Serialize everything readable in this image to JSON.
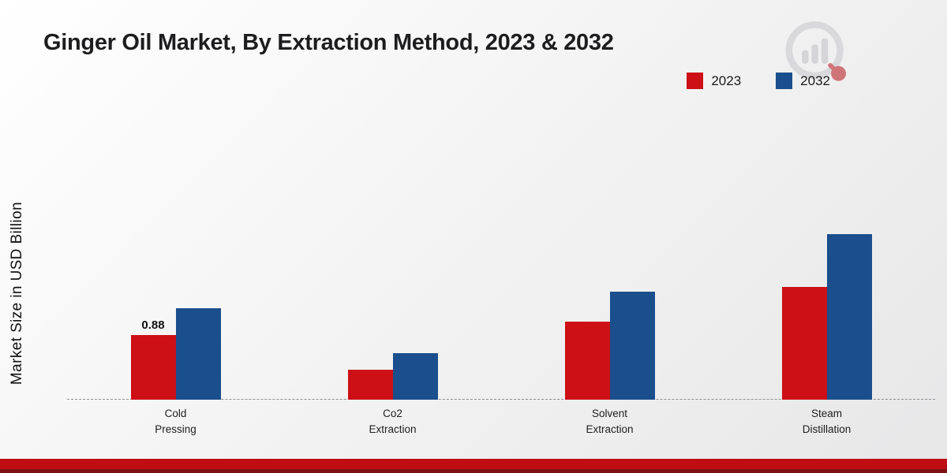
{
  "page": {
    "title": "Ginger Oil Market, By Extraction Method, 2023 & 2032",
    "ylabel": "Market Size in USD Billion"
  },
  "legend": {
    "items": [
      {
        "label": "2023",
        "color": "#cc1016"
      },
      {
        "label": "2032",
        "color": "#1a4e8c"
      }
    ]
  },
  "chart_data": {
    "type": "bar",
    "title": "Ginger Oil Market, By Extraction Method, 2023 & 2032",
    "xlabel": "",
    "ylabel": "Market Size in USD Billion",
    "categories": [
      "Cold Pressing",
      "Co2 Extraction",
      "Solvent Extraction",
      "Steam Distillation"
    ],
    "series": [
      {
        "name": "2023",
        "color": "#cc1016",
        "values": [
          0.88,
          0.41,
          1.06,
          1.54
        ]
      },
      {
        "name": "2032",
        "color": "#1a4e8c",
        "values": [
          1.25,
          0.63,
          1.47,
          2.26
        ]
      }
    ],
    "data_labels": [
      {
        "series": "2023",
        "category": "Cold Pressing",
        "text": "0.88"
      }
    ],
    "ylim": [
      0,
      2.5
    ],
    "grid": false,
    "legend_position": "top-right",
    "baseline_style": "dashed"
  },
  "colors": {
    "series_2023": "#cc1016",
    "series_2032": "#1a4e8c",
    "footer_bar": "#c00d12",
    "footer_strip": "#7d1114",
    "baseline": "#8f8f8f"
  },
  "branding": {
    "logo_name": "market-research-future-watermark"
  }
}
